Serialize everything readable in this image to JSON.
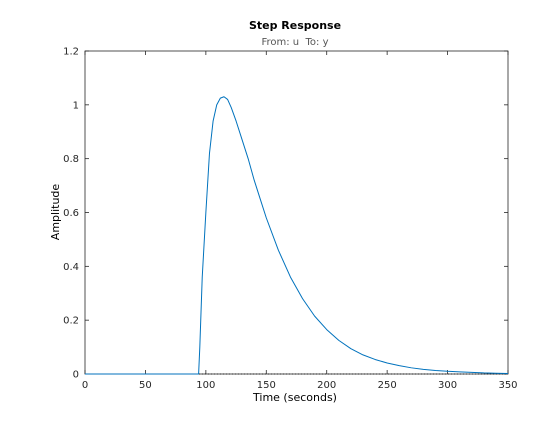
{
  "chart_data": {
    "type": "line",
    "title": "Step Response",
    "subtitle": "From: u  To: y",
    "xlabel": "Time (seconds)",
    "ylabel": "Amplitude",
    "xlim": [
      0,
      350
    ],
    "ylim": [
      0,
      1.2
    ],
    "x_ticks": [
      0,
      50,
      100,
      150,
      200,
      250,
      300,
      350
    ],
    "x_tick_labels": [
      "0",
      "50",
      "100",
      "150",
      "200",
      "250",
      "300",
      "350"
    ],
    "y_ticks": [
      0,
      0.2,
      0.4,
      0.6,
      0.8,
      1,
      1.2
    ],
    "y_tick_labels": [
      "0",
      "0.2",
      "0.4",
      "0.6",
      "0.8",
      "1",
      "1.2"
    ],
    "grid": false,
    "reference_line": {
      "y": 0,
      "style": "dotted",
      "color": "#000000"
    },
    "series": [
      {
        "color": "#0072bd",
        "x": [
          0,
          50,
          94,
          95,
          97,
          100,
          103,
          106,
          109,
          112,
          115,
          118,
          121,
          125,
          130,
          135,
          140,
          145,
          150,
          160,
          170,
          180,
          190,
          200,
          210,
          220,
          230,
          240,
          250,
          260,
          270,
          280,
          290,
          300,
          310,
          320,
          330,
          340,
          350
        ],
        "y": [
          0,
          0,
          0,
          0.1,
          0.36,
          0.6,
          0.82,
          0.94,
          1.0,
          1.025,
          1.03,
          1.02,
          0.99,
          0.94,
          0.87,
          0.8,
          0.72,
          0.65,
          0.58,
          0.46,
          0.36,
          0.28,
          0.215,
          0.165,
          0.125,
          0.094,
          0.071,
          0.054,
          0.041,
          0.031,
          0.023,
          0.017,
          0.013,
          0.01,
          0.008,
          0.006,
          0.004,
          0.003,
          0.002
        ]
      }
    ]
  }
}
